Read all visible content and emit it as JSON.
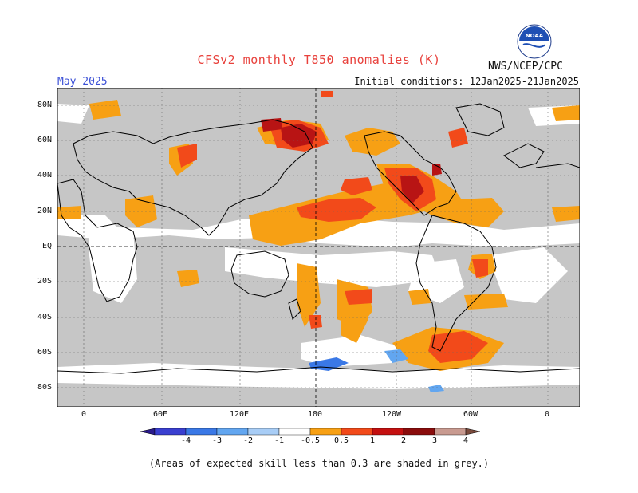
{
  "header": {
    "title": "CFSv2 monthly T850 anomalies (K)",
    "org": "NWS/NCEP/CPC",
    "month": "May 2025",
    "initial_conditions": "Initial conditions: 12Jan2025-21Jan2025",
    "logo_text": "NOAA"
  },
  "axes": {
    "lat_labels": [
      "80N",
      "60N",
      "40N",
      "20N",
      "EQ",
      "20S",
      "40S",
      "60S",
      "80S"
    ],
    "lon_labels": [
      "0",
      "60E",
      "120E",
      "180",
      "120W",
      "60W",
      "0"
    ]
  },
  "colorbar": {
    "labels": [
      "-4",
      "-3",
      "-2",
      "-1",
      "-0.5",
      "0.5",
      "1",
      "2",
      "3",
      "4"
    ],
    "colors": [
      "#2a1a8c",
      "#3a3fd0",
      "#3a78e6",
      "#62a6f0",
      "#a8cdf6",
      "#ffffff",
      "#f7a014",
      "#f24a1a",
      "#c41010",
      "#8a0c0c",
      "#c89a90",
      "#7a4a3c"
    ]
  },
  "footnote": "(Areas of expected skill less than 0.3 are shaded in grey.)",
  "colors": {
    "grey": "#c6c6c6",
    "orange": "#f7a014",
    "red": "#f24a1a",
    "darkred": "#b81414",
    "lightblue": "#62a6f0",
    "blue": "#3a78e6",
    "title": "#e8413c",
    "month": "#3a4fd6"
  }
}
